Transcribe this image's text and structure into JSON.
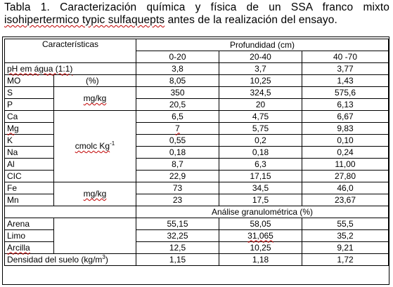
{
  "caption": {
    "line1": "Tabla 1. Caracterización química y física de un SSA franco mixto",
    "line2_word": "isohipertermico typic sulfaquepts",
    "line2_rest": " antes de la realización del ensayo."
  },
  "header": {
    "characteristics": "Características",
    "depth": "Profundidad (cm)",
    "depths": [
      "0-20",
      "20-40",
      "40 -70"
    ],
    "granulometry": "Análise granulométrica (%)"
  },
  "units": {
    "percent": "(%)",
    "mgkg": "mg/kg",
    "cmolc": "cmolc Kg",
    "cmolc_exp": "-1",
    "mgkg2": "mg/kg"
  },
  "rows": {
    "ph": {
      "label": "pH em água (1:1)",
      "v": [
        "3,8",
        "3,7",
        "3,77"
      ]
    },
    "mo": {
      "label": "MO",
      "v": [
        "8,05",
        "10,25",
        "1,43"
      ]
    },
    "s": {
      "label": "S",
      "v": [
        "350",
        "324,5",
        "575,6"
      ]
    },
    "p": {
      "label": "P",
      "v": [
        "20,5",
        "20",
        "6,13"
      ]
    },
    "ca": {
      "label": "Ca",
      "v": [
        "6,5",
        "4,75",
        "6,67"
      ]
    },
    "mg": {
      "label": "Mg",
      "v": [
        "7",
        "5,75",
        "9,83"
      ]
    },
    "k": {
      "label": "K",
      "v": [
        "0,55",
        "0,2",
        "0,10"
      ]
    },
    "na": {
      "label": "Na",
      "v": [
        "0,18",
        "0,18",
        "0,24"
      ]
    },
    "al": {
      "label": "Al",
      "v": [
        "8,7",
        "6,3",
        "11,00"
      ]
    },
    "cic": {
      "label": "CIC",
      "v": [
        "22,9",
        "17,15",
        "27,80"
      ]
    },
    "fe": {
      "label": "Fe",
      "v": [
        "73",
        "34,5",
        "46,0"
      ]
    },
    "mn": {
      "label": "Mn",
      "v": [
        "23",
        "17,5",
        "23,67"
      ]
    },
    "arena": {
      "label": "Arena",
      "v": [
        "55,15",
        "58,05",
        "55,5"
      ]
    },
    "limo": {
      "label": "Limo",
      "v": [
        "32,25",
        "31,065",
        "35,2"
      ]
    },
    "arcilla": {
      "label": "Arcilla",
      "v": [
        "12,5",
        "10,25",
        "9,21"
      ]
    },
    "dens": {
      "label": "Densidad del suelo (kg/m",
      "label_exp": "3",
      "label_end": ")",
      "v": [
        "1,15",
        "1,18",
        "1,72"
      ]
    }
  }
}
